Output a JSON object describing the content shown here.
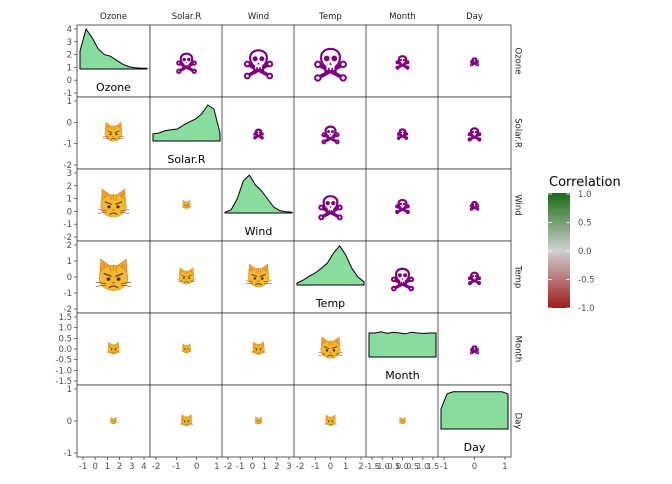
{
  "chart_data": {
    "type": "scatter-matrix",
    "variables": [
      "Ozone",
      "Solar.R",
      "Wind",
      "Temp",
      "Month",
      "Day"
    ],
    "column_headers": [
      "Ozone",
      "Solar.R",
      "Wind",
      "Temp",
      "Month",
      "Day"
    ],
    "row_strips": [
      "Ozone",
      "Solar.R",
      "Wind",
      "Temp",
      "Month",
      "Day"
    ],
    "diagonal": {
      "labels": [
        "Ozone",
        "Solar.R",
        "Wind",
        "Temp",
        "Month",
        "Day"
      ],
      "density_fill": "#88dd9e",
      "densities": [
        [
          0.45,
          1.0,
          0.78,
          0.5,
          0.36,
          0.32,
          0.22,
          0.12,
          0.06,
          0.03,
          0.02,
          0.02
        ],
        [
          0.18,
          0.2,
          0.26,
          0.28,
          0.3,
          0.4,
          0.48,
          0.55,
          0.68,
          0.9,
          0.8,
          0.2
        ],
        [
          0.02,
          0.08,
          0.35,
          0.8,
          0.95,
          0.7,
          0.55,
          0.35,
          0.15,
          0.06,
          0.03,
          0.02
        ],
        [
          0.05,
          0.12,
          0.22,
          0.3,
          0.42,
          0.55,
          0.8,
          0.98,
          0.75,
          0.42,
          0.2,
          0.08
        ],
        [
          0.6,
          0.6,
          0.63,
          0.59,
          0.62,
          0.6,
          0.58,
          0.62,
          0.6,
          0.59,
          0.6,
          0.6
        ],
        [
          0.5,
          0.88,
          0.93,
          0.93,
          0.93,
          0.93,
          0.93,
          0.93,
          0.93,
          0.93,
          0.93,
          0.88
        ]
      ]
    },
    "correlations": [
      [
        1.0,
        0.35,
        -0.6,
        0.7,
        0.16,
        -0.01
      ],
      [
        0.35,
        1.0,
        -0.06,
        0.28,
        -0.08,
        -0.15
      ],
      [
        -0.6,
        -0.06,
        1.0,
        -0.46,
        -0.18,
        0.03
      ],
      [
        0.7,
        0.28,
        -0.46,
        1.0,
        0.42,
        -0.13
      ],
      [
        0.16,
        -0.08,
        -0.18,
        0.42,
        1.0,
        -0.01
      ],
      [
        -0.01,
        -0.15,
        0.03,
        -0.13,
        -0.01,
        1.0
      ]
    ],
    "y_ticks": [
      [
        "4",
        "3",
        "2",
        "1",
        "0",
        "-1"
      ],
      [
        "1",
        "0",
        "-1",
        "-2"
      ],
      [
        "3",
        "2",
        "1",
        "0",
        "-1",
        "-2"
      ],
      [
        "2",
        "1",
        "0",
        "-1",
        "-2"
      ],
      [
        "1.5",
        "1.0",
        "0.5",
        "0.0",
        "-0.5",
        "-1.0",
        "-1.5"
      ],
      [
        "1",
        "0",
        "-1"
      ]
    ],
    "x_ticks": [
      [
        "-1",
        "0",
        "1",
        "2",
        "3",
        "4"
      ],
      [
        "-2",
        "-1",
        "0",
        "1"
      ],
      [
        "-2",
        "-1",
        "0",
        "1",
        "2",
        "3"
      ],
      [
        "-2",
        "-1",
        "0",
        "1",
        "2"
      ],
      [
        "-1.5",
        "-1.0",
        "-0.5",
        "0.0",
        "0.5",
        "1.0",
        "1.5"
      ],
      [
        "-1",
        "0",
        "1"
      ]
    ],
    "legend": {
      "title": "Correlation",
      "ticks": [
        "1.0",
        "0.5",
        "0.0",
        "-0.5",
        "-1.0"
      ],
      "high_color": "#1a6b14",
      "mid_color": "#d0d0d0",
      "low_color": "#9e1b1b",
      "placement": "right"
    },
    "positive_glyph": "skull-and-crossbones",
    "positive_color": "#800080",
    "negative_glyph": "pouting-cat",
    "negative_color": "#f5a623"
  }
}
